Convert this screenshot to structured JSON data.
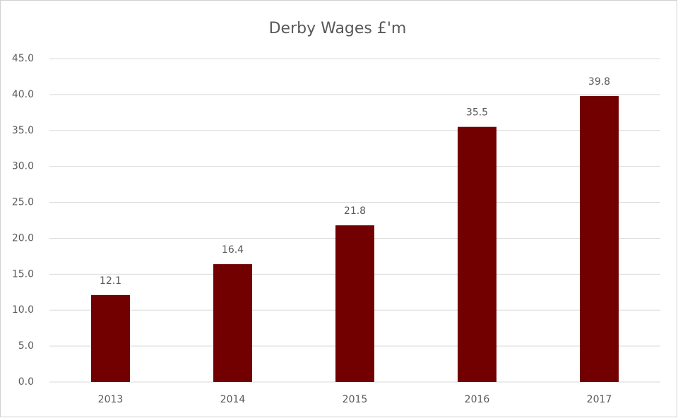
{
  "chart_data": {
    "type": "bar",
    "title": "Derby Wages £'m",
    "categories": [
      "2013",
      "2014",
      "2015",
      "2016",
      "2017"
    ],
    "values": [
      12.1,
      16.4,
      21.8,
      35.5,
      39.8
    ],
    "color": "#720000",
    "ylim": [
      0,
      45
    ],
    "yticks": [
      {
        "value": 0,
        "label": "0.0"
      },
      {
        "value": 5,
        "label": "5.0"
      },
      {
        "value": 10,
        "label": "10.0"
      },
      {
        "value": 15,
        "label": "15.0"
      },
      {
        "value": 20,
        "label": "20.0"
      },
      {
        "value": 25,
        "label": "25.0"
      },
      {
        "value": 30,
        "label": "30.0"
      },
      {
        "value": 35,
        "label": "35.0"
      },
      {
        "value": 40,
        "label": "40.0"
      },
      {
        "value": 45,
        "label": "45.0"
      }
    ],
    "grid": true
  }
}
